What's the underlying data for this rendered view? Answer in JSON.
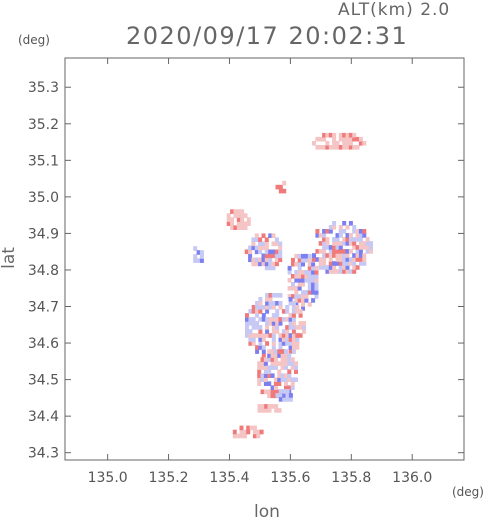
{
  "header": {
    "alt_label": "ALT(km) 2.0",
    "timestamp": "2020/09/17 20:02:31"
  },
  "axes": {
    "x_unit": "(deg)",
    "y_unit": "(deg)",
    "x_label": "lon",
    "y_label": "lat"
  },
  "chart_data": {
    "type": "heatmap",
    "xlabel": "lon",
    "ylabel": "lat",
    "xlim": [
      134.86,
      136.17
    ],
    "ylim": [
      34.28,
      35.38
    ],
    "x_ticks": [
      "135.0",
      "135.2",
      "135.4",
      "135.6",
      "135.8",
      "136.0"
    ],
    "x_tick_values": [
      135.0,
      135.2,
      135.4,
      135.6,
      135.8,
      136.0
    ],
    "y_ticks": [
      "34.3",
      "34.4",
      "34.5",
      "34.6",
      "34.7",
      "34.8",
      "34.9",
      "35.0",
      "35.1",
      "35.2",
      "35.3"
    ],
    "y_tick_values": [
      34.3,
      34.4,
      34.5,
      34.6,
      34.7,
      34.8,
      34.9,
      35.0,
      35.1,
      35.2,
      35.3
    ],
    "grid": false,
    "colors": {
      "positive": "#f07a7a",
      "negative": "#7b7ff0",
      "light_positive": "#f5c4c4",
      "light_negative": "#c7c9f5"
    },
    "regions": [
      {
        "lon": [
          135.66,
          135.84
        ],
        "lat": [
          35.12,
          35.17
        ],
        "sign": "positive"
      },
      {
        "lon": [
          135.54,
          135.58
        ],
        "lat": [
          35.0,
          35.04
        ],
        "sign": "positive"
      },
      {
        "lon": [
          135.38,
          135.46
        ],
        "lat": [
          34.9,
          34.96
        ],
        "sign": "positive"
      },
      {
        "lon": [
          135.27,
          135.31
        ],
        "lat": [
          34.81,
          34.86
        ],
        "sign": "negative"
      },
      {
        "lon": [
          135.45,
          135.57
        ],
        "lat": [
          34.79,
          34.9
        ],
        "sign": "mixed"
      },
      {
        "lon": [
          135.58,
          135.69
        ],
        "lat": [
          34.69,
          34.84
        ],
        "sign": "mixed"
      },
      {
        "lon": [
          135.66,
          135.86
        ],
        "lat": [
          34.78,
          34.93
        ],
        "sign": "mixed"
      },
      {
        "lon": [
          135.44,
          135.64
        ],
        "lat": [
          34.55,
          34.73
        ],
        "sign": "mixed"
      },
      {
        "lon": [
          135.48,
          135.62
        ],
        "lat": [
          34.44,
          34.58
        ],
        "sign": "mixed"
      },
      {
        "lon": [
          135.54,
          135.6
        ],
        "lat": [
          34.43,
          34.47
        ],
        "sign": "negative"
      },
      {
        "lon": [
          135.47,
          135.56
        ],
        "lat": [
          34.4,
          34.43
        ],
        "sign": "positive"
      },
      {
        "lon": [
          135.4,
          135.5
        ],
        "lat": [
          34.33,
          34.37
        ],
        "sign": "positive"
      }
    ]
  }
}
